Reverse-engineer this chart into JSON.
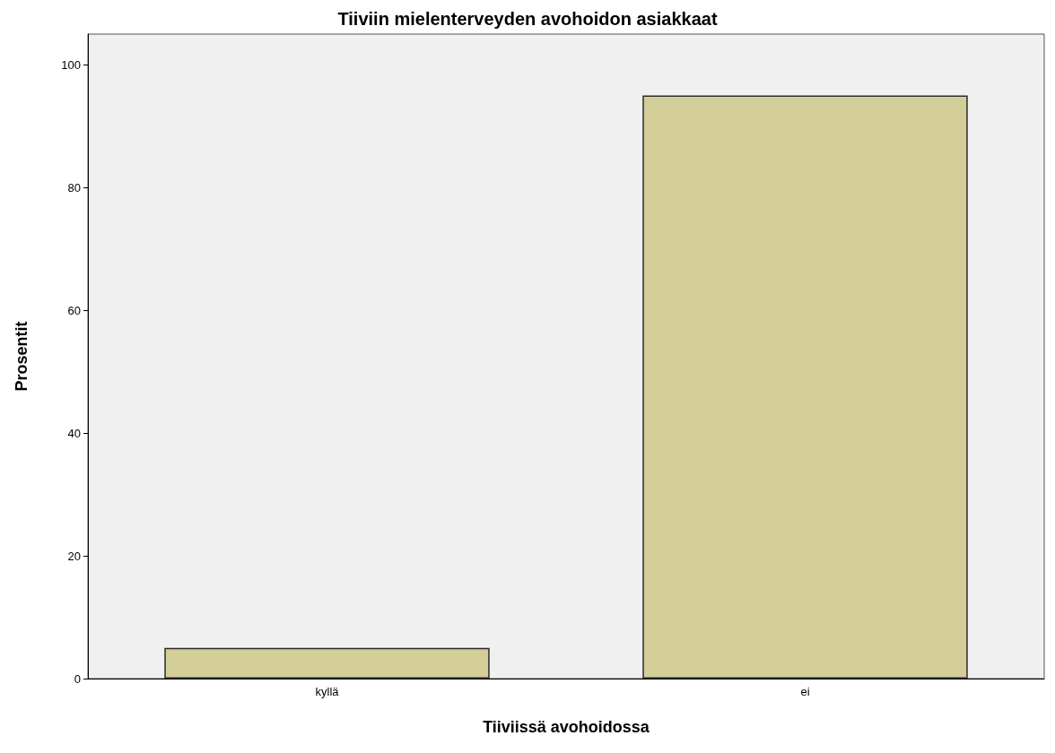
{
  "chart_data": {
    "type": "bar",
    "title": "Tiiviin mielenterveyden avohoidon asiakkaat",
    "xlabel": "Tiiviissä avohoidossa",
    "ylabel": "Prosentit",
    "categories": [
      "kyllä",
      "ei"
    ],
    "values": [
      5,
      95
    ],
    "color": "#d3ce97",
    "ylim": [
      0,
      105
    ],
    "yticks": [
      0,
      20,
      40,
      60,
      80,
      100
    ],
    "grid": false
  }
}
